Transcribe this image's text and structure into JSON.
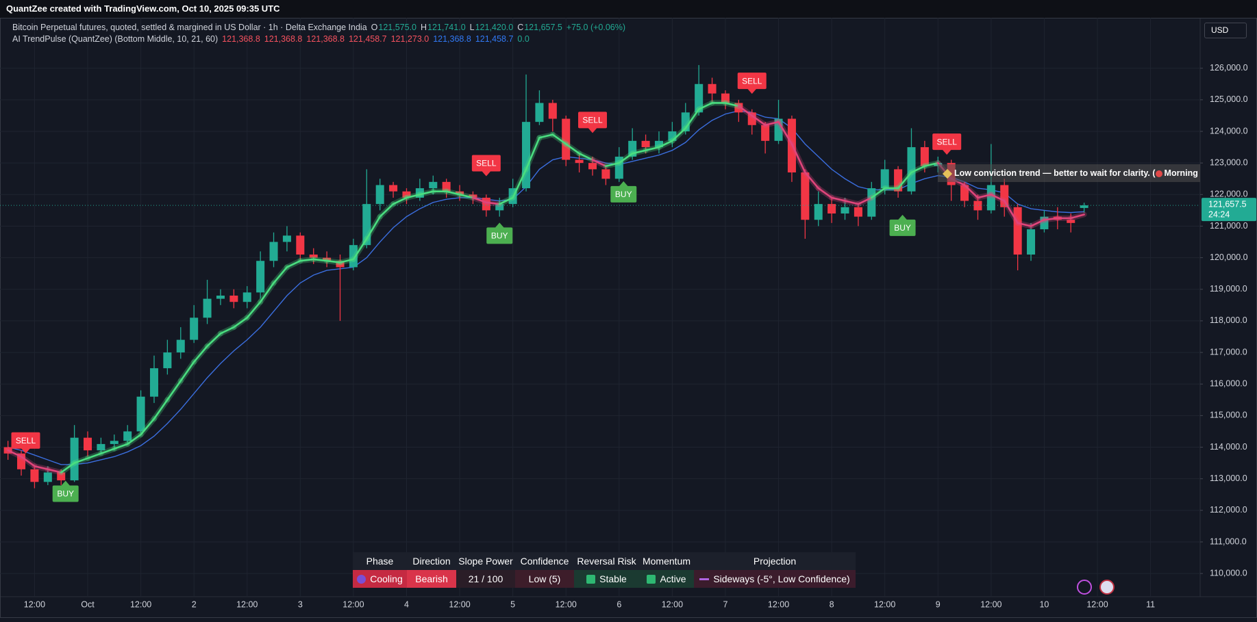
{
  "header": {
    "credit": "QuantZee created with TradingView.com, Oct 10, 2025 09:35 UTC",
    "symbol": "Bitcoin Perpetual futures, quoted, settled & margined in US Dollar · 1h · Delta Exchange India",
    "ohlc": [
      {
        "key": "O",
        "value": "121,575.0"
      },
      {
        "key": "H",
        "value": "121,741.0"
      },
      {
        "key": "L",
        "value": "121,420.0"
      },
      {
        "key": "C",
        "value": "121,657.5"
      }
    ],
    "change": "+75.0 (+0.06%)",
    "indicator": "AI TrendPulse (QuantZee) (Bottom Middle, 10, 21, 60)",
    "indicator_values": [
      {
        "text": "121,368.8",
        "color": "#f7525f"
      },
      {
        "text": "121,368.8",
        "color": "#f7525f"
      },
      {
        "text": "121,368.8",
        "color": "#f7525f"
      },
      {
        "text": "121,458.7",
        "color": "#f7525f"
      },
      {
        "text": "121,273.0",
        "color": "#f7525f"
      },
      {
        "text": "121,368.8",
        "color": "#3179f5"
      },
      {
        "text": "121,458.7",
        "color": "#3179f5"
      },
      {
        "text": "0.0",
        "color": "#22ab94"
      }
    ],
    "currency": "USD"
  },
  "annotation": {
    "text_1": "Low conviction trend — better to wait for clarity. (",
    "text_2": "Morning Pow"
  },
  "dashboard": {
    "headers": [
      "Phase",
      "Direction",
      "Slope Power",
      "Confidence",
      "Reversal Risk",
      "Momentum",
      "Projection"
    ],
    "cells": [
      "Cooling",
      "Bearish",
      "21 / 100",
      "Low (5)",
      "Stable",
      "Active",
      "Sideways (-5°, Low Confidence)"
    ]
  },
  "chart_data": {
    "type": "candlestick",
    "up_color": "#22ab94",
    "down_color": "#f23645",
    "xlim": [
      4.2,
      275.2
    ],
    "ylim": [
      109266,
      127597
    ],
    "grid": true,
    "xticks": [
      {
        "value": 12,
        "label": "12:00"
      },
      {
        "value": 24,
        "label": "Oct"
      },
      {
        "value": 36,
        "label": "12:00"
      },
      {
        "value": 48,
        "label": "2"
      },
      {
        "value": 60,
        "label": "12:00"
      },
      {
        "value": 72,
        "label": "3"
      },
      {
        "value": 84,
        "label": "12:00"
      },
      {
        "value": 96,
        "label": "4"
      },
      {
        "value": 108,
        "label": "12:00"
      },
      {
        "value": 120,
        "label": "5"
      },
      {
        "value": 132,
        "label": "12:00"
      },
      {
        "value": 144,
        "label": "6"
      },
      {
        "value": 156,
        "label": "12:00"
      },
      {
        "value": 168,
        "label": "7"
      },
      {
        "value": 180,
        "label": "12:00"
      },
      {
        "value": 192,
        "label": "8"
      },
      {
        "value": 204,
        "label": "12:00"
      },
      {
        "value": 216,
        "label": "9"
      },
      {
        "value": 228,
        "label": "12:00"
      },
      {
        "value": 240,
        "label": "10"
      },
      {
        "value": 252,
        "label": "12:00"
      },
      {
        "value": 264,
        "label": "11"
      }
    ],
    "yticks": [
      {
        "value": 110000,
        "label": "110,000.0"
      },
      {
        "value": 111000,
        "label": "111,000.0"
      },
      {
        "value": 112000,
        "label": "112,000.0"
      },
      {
        "value": 113000,
        "label": "113,000.0"
      },
      {
        "value": 114000,
        "label": "114,000.0"
      },
      {
        "value": 115000,
        "label": "115,000.0"
      },
      {
        "value": 116000,
        "label": "116,000.0"
      },
      {
        "value": 117000,
        "label": "117,000.0"
      },
      {
        "value": 118000,
        "label": "118,000.0"
      },
      {
        "value": 119000,
        "label": "119,000.0"
      },
      {
        "value": 120000,
        "label": "120,000.0"
      },
      {
        "value": 121000,
        "label": "121,000.0"
      },
      {
        "value": 122000,
        "label": "122,000.0"
      },
      {
        "value": 123000,
        "label": "123,000.0"
      },
      {
        "value": 124000,
        "label": "124,000.0"
      },
      {
        "value": 125000,
        "label": "125,000.0"
      },
      {
        "value": 126000,
        "label": "126,000.0"
      }
    ],
    "last_price": {
      "value": 121657.5,
      "label": "121,657.5"
    },
    "countdown": "24:24",
    "x": [
      6,
      9,
      12,
      15,
      18,
      21,
      24,
      27,
      30,
      33,
      36,
      39,
      42,
      45,
      48,
      51,
      54,
      57,
      60,
      63,
      66,
      69,
      72,
      75,
      78,
      81,
      84,
      87,
      90,
      93,
      96,
      99,
      102,
      105,
      108,
      111,
      114,
      117,
      120,
      123,
      126,
      129,
      132,
      135,
      138,
      141,
      144,
      147,
      150,
      153,
      156,
      159,
      162,
      165,
      168,
      171,
      174,
      177,
      180,
      183,
      186,
      189,
      192,
      195,
      198,
      201,
      204,
      207,
      210,
      213,
      216,
      219,
      222,
      225,
      228,
      231,
      234,
      237,
      240,
      243,
      246,
      249
    ],
    "ohlc": [
      [
        114000,
        114200,
        113600,
        113800
      ],
      [
        113800,
        113900,
        113100,
        113300
      ],
      [
        113300,
        113400,
        112700,
        112900
      ],
      [
        112900,
        113400,
        112800,
        113200
      ],
      [
        113200,
        113300,
        112800,
        112950
      ],
      [
        112950,
        114700,
        112900,
        114300
      ],
      [
        114300,
        114500,
        113700,
        113900
      ],
      [
        113900,
        114300,
        113800,
        114100
      ],
      [
        114100,
        114400,
        113900,
        114200
      ],
      [
        114200,
        114700,
        114100,
        114500
      ],
      [
        114500,
        115800,
        114400,
        115600
      ],
      [
        115600,
        116900,
        115400,
        116500
      ],
      [
        116500,
        117400,
        116300,
        117000
      ],
      [
        117000,
        117800,
        116800,
        117400
      ],
      [
        117400,
        118500,
        117300,
        118100
      ],
      [
        118100,
        119300,
        117900,
        118700
      ],
      [
        118700,
        119000,
        118500,
        118800
      ],
      [
        118800,
        119000,
        118400,
        118600
      ],
      [
        118600,
        119100,
        118400,
        118900
      ],
      [
        118900,
        120200,
        118700,
        119900
      ],
      [
        119900,
        120800,
        119700,
        120500
      ],
      [
        120500,
        121000,
        120200,
        120700
      ],
      [
        120700,
        120800,
        119900,
        120100
      ],
      [
        120100,
        120300,
        119800,
        120000
      ],
      [
        120000,
        120200,
        119700,
        119900
      ],
      [
        119900,
        120100,
        118000,
        119700
      ],
      [
        119700,
        120600,
        119600,
        120400
      ],
      [
        120400,
        122800,
        120300,
        121700
      ],
      [
        121700,
        122500,
        121500,
        122300
      ],
      [
        122300,
        122400,
        121900,
        122100
      ],
      [
        122100,
        122200,
        121700,
        121900
      ],
      [
        121900,
        122500,
        121800,
        122200
      ],
      [
        122200,
        122600,
        122000,
        122400
      ],
      [
        122400,
        122500,
        121900,
        122100
      ],
      [
        122100,
        122300,
        121800,
        122000
      ],
      [
        122000,
        122100,
        121700,
        121900
      ],
      [
        121900,
        122000,
        121300,
        121500
      ],
      [
        121500,
        121900,
        121300,
        121700
      ],
      [
        121700,
        122500,
        121600,
        122200
      ],
      [
        122200,
        125800,
        122100,
        124300
      ],
      [
        124300,
        125300,
        124200,
        124900
      ],
      [
        124900,
        125000,
        124000,
        124400
      ],
      [
        124400,
        124500,
        122900,
        123100
      ],
      [
        123100,
        123300,
        122700,
        123000
      ],
      [
        123000,
        123200,
        122600,
        122800
      ],
      [
        122800,
        122900,
        122300,
        122500
      ],
      [
        122500,
        123500,
        122400,
        123200
      ],
      [
        123200,
        124100,
        123100,
        123700
      ],
      [
        123700,
        123900,
        123300,
        123500
      ],
      [
        123500,
        124000,
        123300,
        123700
      ],
      [
        123700,
        124300,
        123500,
        124000
      ],
      [
        124000,
        124900,
        123900,
        124600
      ],
      [
        124600,
        126100,
        124500,
        125500
      ],
      [
        125500,
        125700,
        124900,
        125200
      ],
      [
        125200,
        125300,
        124700,
        124900
      ],
      [
        124900,
        125000,
        124300,
        124600
      ],
      [
        124600,
        124700,
        123900,
        124200
      ],
      [
        124200,
        124300,
        123300,
        123700
      ],
      [
        123700,
        125000,
        123600,
        124400
      ],
      [
        124400,
        124500,
        122400,
        122700
      ],
      [
        122700,
        122800,
        120600,
        121200
      ],
      [
        121200,
        122100,
        121000,
        121700
      ],
      [
        121700,
        121900,
        121100,
        121400
      ],
      [
        121400,
        121900,
        121200,
        121600
      ],
      [
        121600,
        121700,
        121000,
        121300
      ],
      [
        121300,
        122400,
        121200,
        122200
      ],
      [
        122200,
        123100,
        122000,
        122800
      ],
      [
        122800,
        122900,
        121900,
        122100
      ],
      [
        122100,
        124100,
        122000,
        123500
      ],
      [
        123500,
        123700,
        122700,
        122900
      ],
      [
        122900,
        123200,
        122700,
        123000
      ],
      [
        123000,
        123100,
        121800,
        122300
      ],
      [
        122300,
        122400,
        121600,
        121800
      ],
      [
        121800,
        122000,
        121200,
        121500
      ],
      [
        121500,
        123600,
        121400,
        122300
      ],
      [
        122300,
        122500,
        121300,
        121600
      ],
      [
        121600,
        121700,
        119600,
        120100
      ],
      [
        120100,
        121100,
        119900,
        120900
      ],
      [
        120900,
        121500,
        120800,
        121300
      ],
      [
        121300,
        121600,
        120900,
        121200
      ],
      [
        121200,
        121400,
        120800,
        121100
      ],
      [
        121575,
        121741,
        121420,
        121657.5
      ]
    ],
    "trend": {
      "color_up": "#4ade80",
      "color_down": "#e0457b",
      "values": [
        113900,
        113700,
        113400,
        113300,
        113200,
        113500,
        113650,
        113800,
        113950,
        114100,
        114400,
        114900,
        115500,
        116100,
        116700,
        117200,
        117600,
        117800,
        118100,
        118600,
        119200,
        119700,
        119900,
        119950,
        119900,
        119850,
        119950,
        120600,
        121300,
        121700,
        121900,
        122000,
        122100,
        122100,
        122000,
        121900,
        121750,
        121700,
        121900,
        122800,
        123800,
        123900,
        123600,
        123300,
        123100,
        122900,
        123000,
        123300,
        123400,
        123500,
        123700,
        124100,
        124700,
        124900,
        124900,
        124800,
        124500,
        124200,
        124300,
        123600,
        122700,
        122200,
        121900,
        121800,
        121700,
        121900,
        122200,
        122200,
        122700,
        122900,
        123000,
        122500,
        122300,
        121900,
        122000,
        121800,
        121100,
        121000,
        121200,
        121250,
        121250,
        121368.8
      ]
    },
    "baseline": {
      "color": "#3b6fe0",
      "values": [
        114000,
        113900,
        113750,
        113600,
        113450,
        113450,
        113500,
        113600,
        113700,
        113850,
        114050,
        114350,
        114750,
        115200,
        115700,
        116200,
        116650,
        117050,
        117400,
        117800,
        118300,
        118800,
        119200,
        119450,
        119600,
        119650,
        119700,
        120000,
        120500,
        120950,
        121300,
        121550,
        121750,
        121850,
        121900,
        121900,
        121850,
        121800,
        121850,
        122250,
        122800,
        123100,
        123200,
        123150,
        123100,
        123000,
        122950,
        123050,
        123150,
        123250,
        123400,
        123650,
        124050,
        124350,
        124550,
        124650,
        124600,
        124450,
        124400,
        124100,
        123600,
        123200,
        122800,
        122500,
        122250,
        122150,
        122150,
        122150,
        122350,
        122500,
        122600,
        122550,
        122400,
        122200,
        122150,
        122050,
        121700,
        121550,
        121500,
        121450,
        121430,
        121458.7
      ]
    },
    "signals": [
      {
        "x": 10,
        "price": 113800,
        "label": "SELL"
      },
      {
        "x": 19,
        "price": 112940,
        "label": "BUY"
      },
      {
        "x": 114,
        "price": 122580,
        "label": "SELL"
      },
      {
        "x": 117,
        "price": 121110,
        "label": "BUY"
      },
      {
        "x": 138,
        "price": 123950,
        "label": "SELL"
      },
      {
        "x": 145,
        "price": 122420,
        "label": "BUY"
      },
      {
        "x": 174,
        "price": 125190,
        "label": "SELL"
      },
      {
        "x": 208,
        "price": 121360,
        "label": "BUY"
      },
      {
        "x": 218,
        "price": 123260,
        "label": "SELL"
      }
    ]
  }
}
